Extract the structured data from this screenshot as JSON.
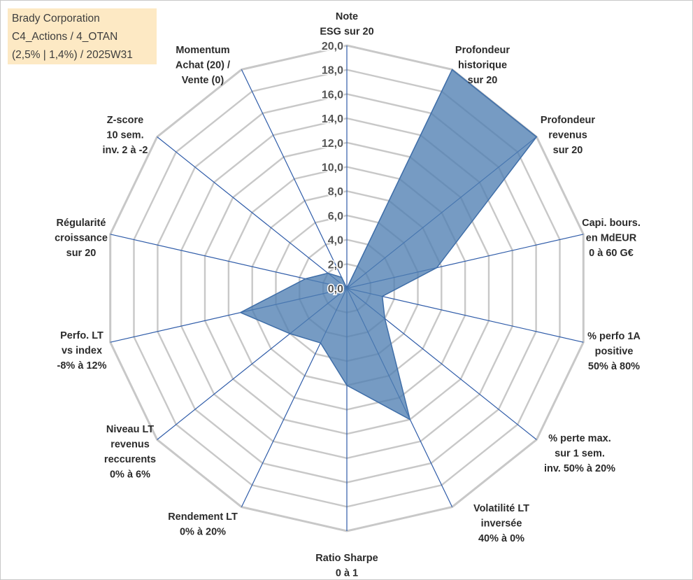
{
  "title_box": {
    "line1": "Brady Corporation",
    "line2": "C4_Actions / 4_OTAN",
    "line3": "(2,5% | 1,4%) / 2025W31",
    "background": "#fde9c4"
  },
  "chart_data": {
    "type": "radar",
    "r_min": 0,
    "r_max": 20,
    "r_step": 2,
    "tick_labels": [
      "0,0",
      "2,0",
      "4,0",
      "6,0",
      "8,0",
      "10,0",
      "12,0",
      "14,0",
      "16,0",
      "18,0",
      "20,0"
    ],
    "axes": [
      [
        "Note",
        "ESG sur 20"
      ],
      [
        "Profondeur",
        "historique",
        "sur 20"
      ],
      [
        "Profondeur",
        "revenus",
        "sur 20"
      ],
      [
        "Capi. bours.",
        "en MdEUR",
        "0 à 60 G€"
      ],
      [
        "% perfo 1A",
        "positive",
        "50% à 80%"
      ],
      [
        "% perte max.",
        "sur 1 sem.",
        "inv. 50% à 20%"
      ],
      [
        "Volatilité LT",
        "inversée",
        "40% à 0%"
      ],
      [
        "Ratio Sharpe",
        "0 à 1"
      ],
      [
        "Rendement LT",
        "0% à 20%"
      ],
      [
        "Niveau LT",
        "revenus",
        "reccurents",
        "0% à 6%"
      ],
      [
        "Perfo. LT",
        "vs index",
        "-8% à 12%"
      ],
      [
        "Régularité",
        "croissance",
        "sur 20"
      ],
      [
        "Z-score",
        "10 sem.",
        "inv. 2 à -2"
      ],
      [
        "Momentum",
        "Achat (20) /",
        "Vente (0)"
      ]
    ],
    "series": [
      {
        "values": [
          0.0,
          20.0,
          20.0,
          7.6,
          3.0,
          4.0,
          12.0,
          8.0,
          5.0,
          6.0,
          9.0,
          3.5,
          2.0,
          1.0
        ]
      }
    ],
    "grid": true,
    "colors": {
      "fill": "#4f7fb2",
      "edge": "#3f6ea8",
      "spokes": "#2e5ba8",
      "rings": "#c8c8c8"
    }
  }
}
